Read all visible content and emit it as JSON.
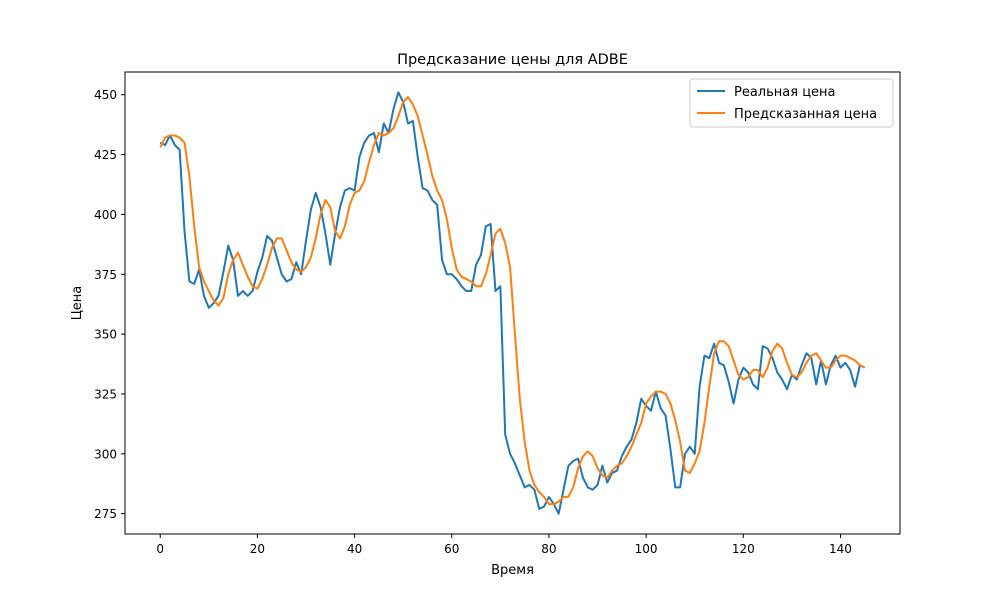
{
  "chart_data": {
    "type": "line",
    "title": "Предсказание цены для ADBE",
    "xlabel": "Время",
    "ylabel": "Цена",
    "xlim": [
      -7.25,
      152.25
    ],
    "ylim": [
      266.5,
      459.5
    ],
    "xticks": [
      0,
      20,
      40,
      60,
      80,
      100,
      120,
      140
    ],
    "yticks": [
      275,
      300,
      325,
      350,
      375,
      400,
      425,
      450
    ],
    "grid": false,
    "legend_position": "upper right",
    "series": [
      {
        "name": "Реальная цена",
        "color": "#1f77b4",
        "x": [
          0,
          1,
          2,
          3,
          4,
          5,
          6,
          7,
          8,
          9,
          10,
          11,
          12,
          13,
          14,
          15,
          16,
          17,
          18,
          19,
          20,
          21,
          22,
          23,
          24,
          25,
          26,
          27,
          28,
          29,
          30,
          31,
          32,
          33,
          34,
          35,
          36,
          37,
          38,
          39,
          40,
          41,
          42,
          43,
          44,
          45,
          46,
          47,
          48,
          49,
          50,
          51,
          52,
          53,
          54,
          55,
          56,
          57,
          58,
          59,
          60,
          61,
          62,
          63,
          64,
          65,
          66,
          67,
          68,
          69,
          70,
          71,
          72,
          73,
          74,
          75,
          76,
          77,
          78,
          79,
          80,
          81,
          82,
          83,
          84,
          85,
          86,
          87,
          88,
          89,
          90,
          91,
          92,
          93,
          94,
          95,
          96,
          97,
          98,
          99,
          100,
          101,
          102,
          103,
          104,
          105,
          106,
          107,
          108,
          109,
          110,
          111,
          112,
          113,
          114,
          115,
          116,
          117,
          118,
          119,
          120,
          121,
          122,
          123,
          124,
          125,
          126,
          127,
          128,
          129,
          130,
          131,
          132,
          133,
          134,
          135,
          136,
          137,
          138,
          139,
          140,
          141,
          142,
          143,
          144,
          145
        ],
        "y": [
          430,
          429,
          433,
          429,
          427,
          393,
          372,
          371,
          377,
          366,
          361,
          363,
          366,
          376,
          387,
          381,
          366,
          368,
          366,
          368,
          376,
          382,
          391,
          389,
          382,
          375,
          372,
          373,
          380,
          375,
          389,
          402,
          409,
          403,
          392,
          379,
          392,
          403,
          410,
          411,
          410,
          424,
          430,
          433,
          434,
          426,
          438,
          434,
          444,
          451,
          447,
          438,
          439,
          424,
          411,
          410,
          406,
          404,
          381,
          375,
          375,
          373,
          370,
          368,
          368,
          379,
          383,
          395,
          396,
          368,
          370,
          308,
          300,
          296,
          291,
          286,
          287,
          285,
          277,
          278,
          282,
          279,
          275,
          285,
          295,
          297,
          298,
          290,
          286,
          285,
          287,
          295,
          288,
          292,
          293,
          299,
          303,
          306,
          313,
          323,
          320,
          318,
          326,
          319,
          316,
          302,
          286,
          286,
          300,
          303,
          300,
          328,
          341,
          340,
          346,
          338,
          337,
          330,
          321,
          331,
          336,
          334,
          329,
          327,
          345,
          344,
          340,
          334,
          331,
          327,
          333,
          331,
          337,
          342,
          340,
          329,
          339,
          329,
          337,
          341,
          336,
          338,
          335,
          328,
          337,
          336
        ]
      },
      {
        "name": "Предсказанная цена",
        "color": "#ff7f0e",
        "x": [
          0,
          1,
          2,
          3,
          4,
          5,
          6,
          7,
          8,
          9,
          10,
          11,
          12,
          13,
          14,
          15,
          16,
          17,
          18,
          19,
          20,
          21,
          22,
          23,
          24,
          25,
          26,
          27,
          28,
          29,
          30,
          31,
          32,
          33,
          34,
          35,
          36,
          37,
          38,
          39,
          40,
          41,
          42,
          43,
          44,
          45,
          46,
          47,
          48,
          49,
          50,
          51,
          52,
          53,
          54,
          55,
          56,
          57,
          58,
          59,
          60,
          61,
          62,
          63,
          64,
          65,
          66,
          67,
          68,
          69,
          70,
          71,
          72,
          73,
          74,
          75,
          76,
          77,
          78,
          79,
          80,
          81,
          82,
          83,
          84,
          85,
          86,
          87,
          88,
          89,
          90,
          91,
          92,
          93,
          94,
          95,
          96,
          97,
          98,
          99,
          100,
          101,
          102,
          103,
          104,
          105,
          106,
          107,
          108,
          109,
          110,
          111,
          112,
          113,
          114,
          115,
          116,
          117,
          118,
          119,
          120,
          121,
          122,
          123,
          124,
          125,
          126,
          127,
          128,
          129,
          130,
          131,
          132,
          133,
          134,
          135,
          136,
          137,
          138,
          139,
          140,
          141,
          142,
          143,
          144,
          145
        ],
        "y": [
          428,
          432,
          433,
          433,
          432,
          430,
          416,
          395,
          378,
          372,
          368,
          364,
          362,
          365,
          375,
          381,
          384,
          379,
          374,
          370,
          369,
          373,
          379,
          386,
          390,
          390,
          385,
          380,
          377,
          376,
          378,
          382,
          390,
          400,
          406,
          403,
          393,
          390,
          395,
          404,
          409,
          410,
          414,
          422,
          429,
          434,
          433,
          434,
          436,
          441,
          447,
          449,
          446,
          441,
          433,
          425,
          416,
          410,
          406,
          398,
          386,
          377,
          374,
          373,
          372,
          370,
          370,
          375,
          383,
          392,
          394,
          388,
          378,
          350,
          323,
          305,
          293,
          287,
          284,
          282,
          279,
          279,
          280,
          282,
          282,
          286,
          294,
          299,
          301,
          299,
          294,
          291,
          290,
          293,
          295,
          296,
          299,
          303,
          308,
          313,
          321,
          324,
          326,
          326,
          325,
          321,
          314,
          305,
          293,
          292,
          296,
          301,
          313,
          328,
          342,
          347,
          347,
          345,
          339,
          333,
          331,
          332,
          335,
          335,
          332,
          336,
          343,
          346,
          344,
          338,
          333,
          332,
          334,
          338,
          341,
          342,
          339,
          336,
          336,
          339,
          341,
          341,
          340,
          339,
          337,
          336
        ]
      }
    ]
  }
}
